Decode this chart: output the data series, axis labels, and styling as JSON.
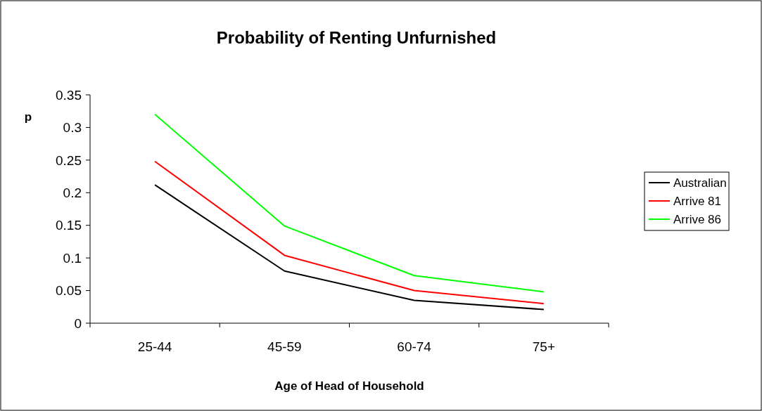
{
  "chart_data": {
    "type": "line",
    "title": "Probability of Renting Unfurnished",
    "xlabel": "Age of Head of Household",
    "ylabel": "p",
    "categories": [
      "25-44",
      "45-59",
      "60-74",
      "75+"
    ],
    "series": [
      {
        "name": "Australian",
        "color": "#000000",
        "values": [
          0.212,
          0.08,
          0.035,
          0.021
        ]
      },
      {
        "name": "Arrive 81",
        "color": "#ff0000",
        "values": [
          0.248,
          0.104,
          0.05,
          0.03
        ]
      },
      {
        "name": "Arrive 86",
        "color": "#00ff00",
        "values": [
          0.32,
          0.149,
          0.073,
          0.048
        ]
      }
    ],
    "ylim": [
      0,
      0.35
    ],
    "yticks": [
      0,
      0.05,
      0.1,
      0.15,
      0.2,
      0.25,
      0.3,
      0.35
    ],
    "grid": false,
    "legend": "right",
    "marker": "none",
    "line_style": "solid"
  }
}
